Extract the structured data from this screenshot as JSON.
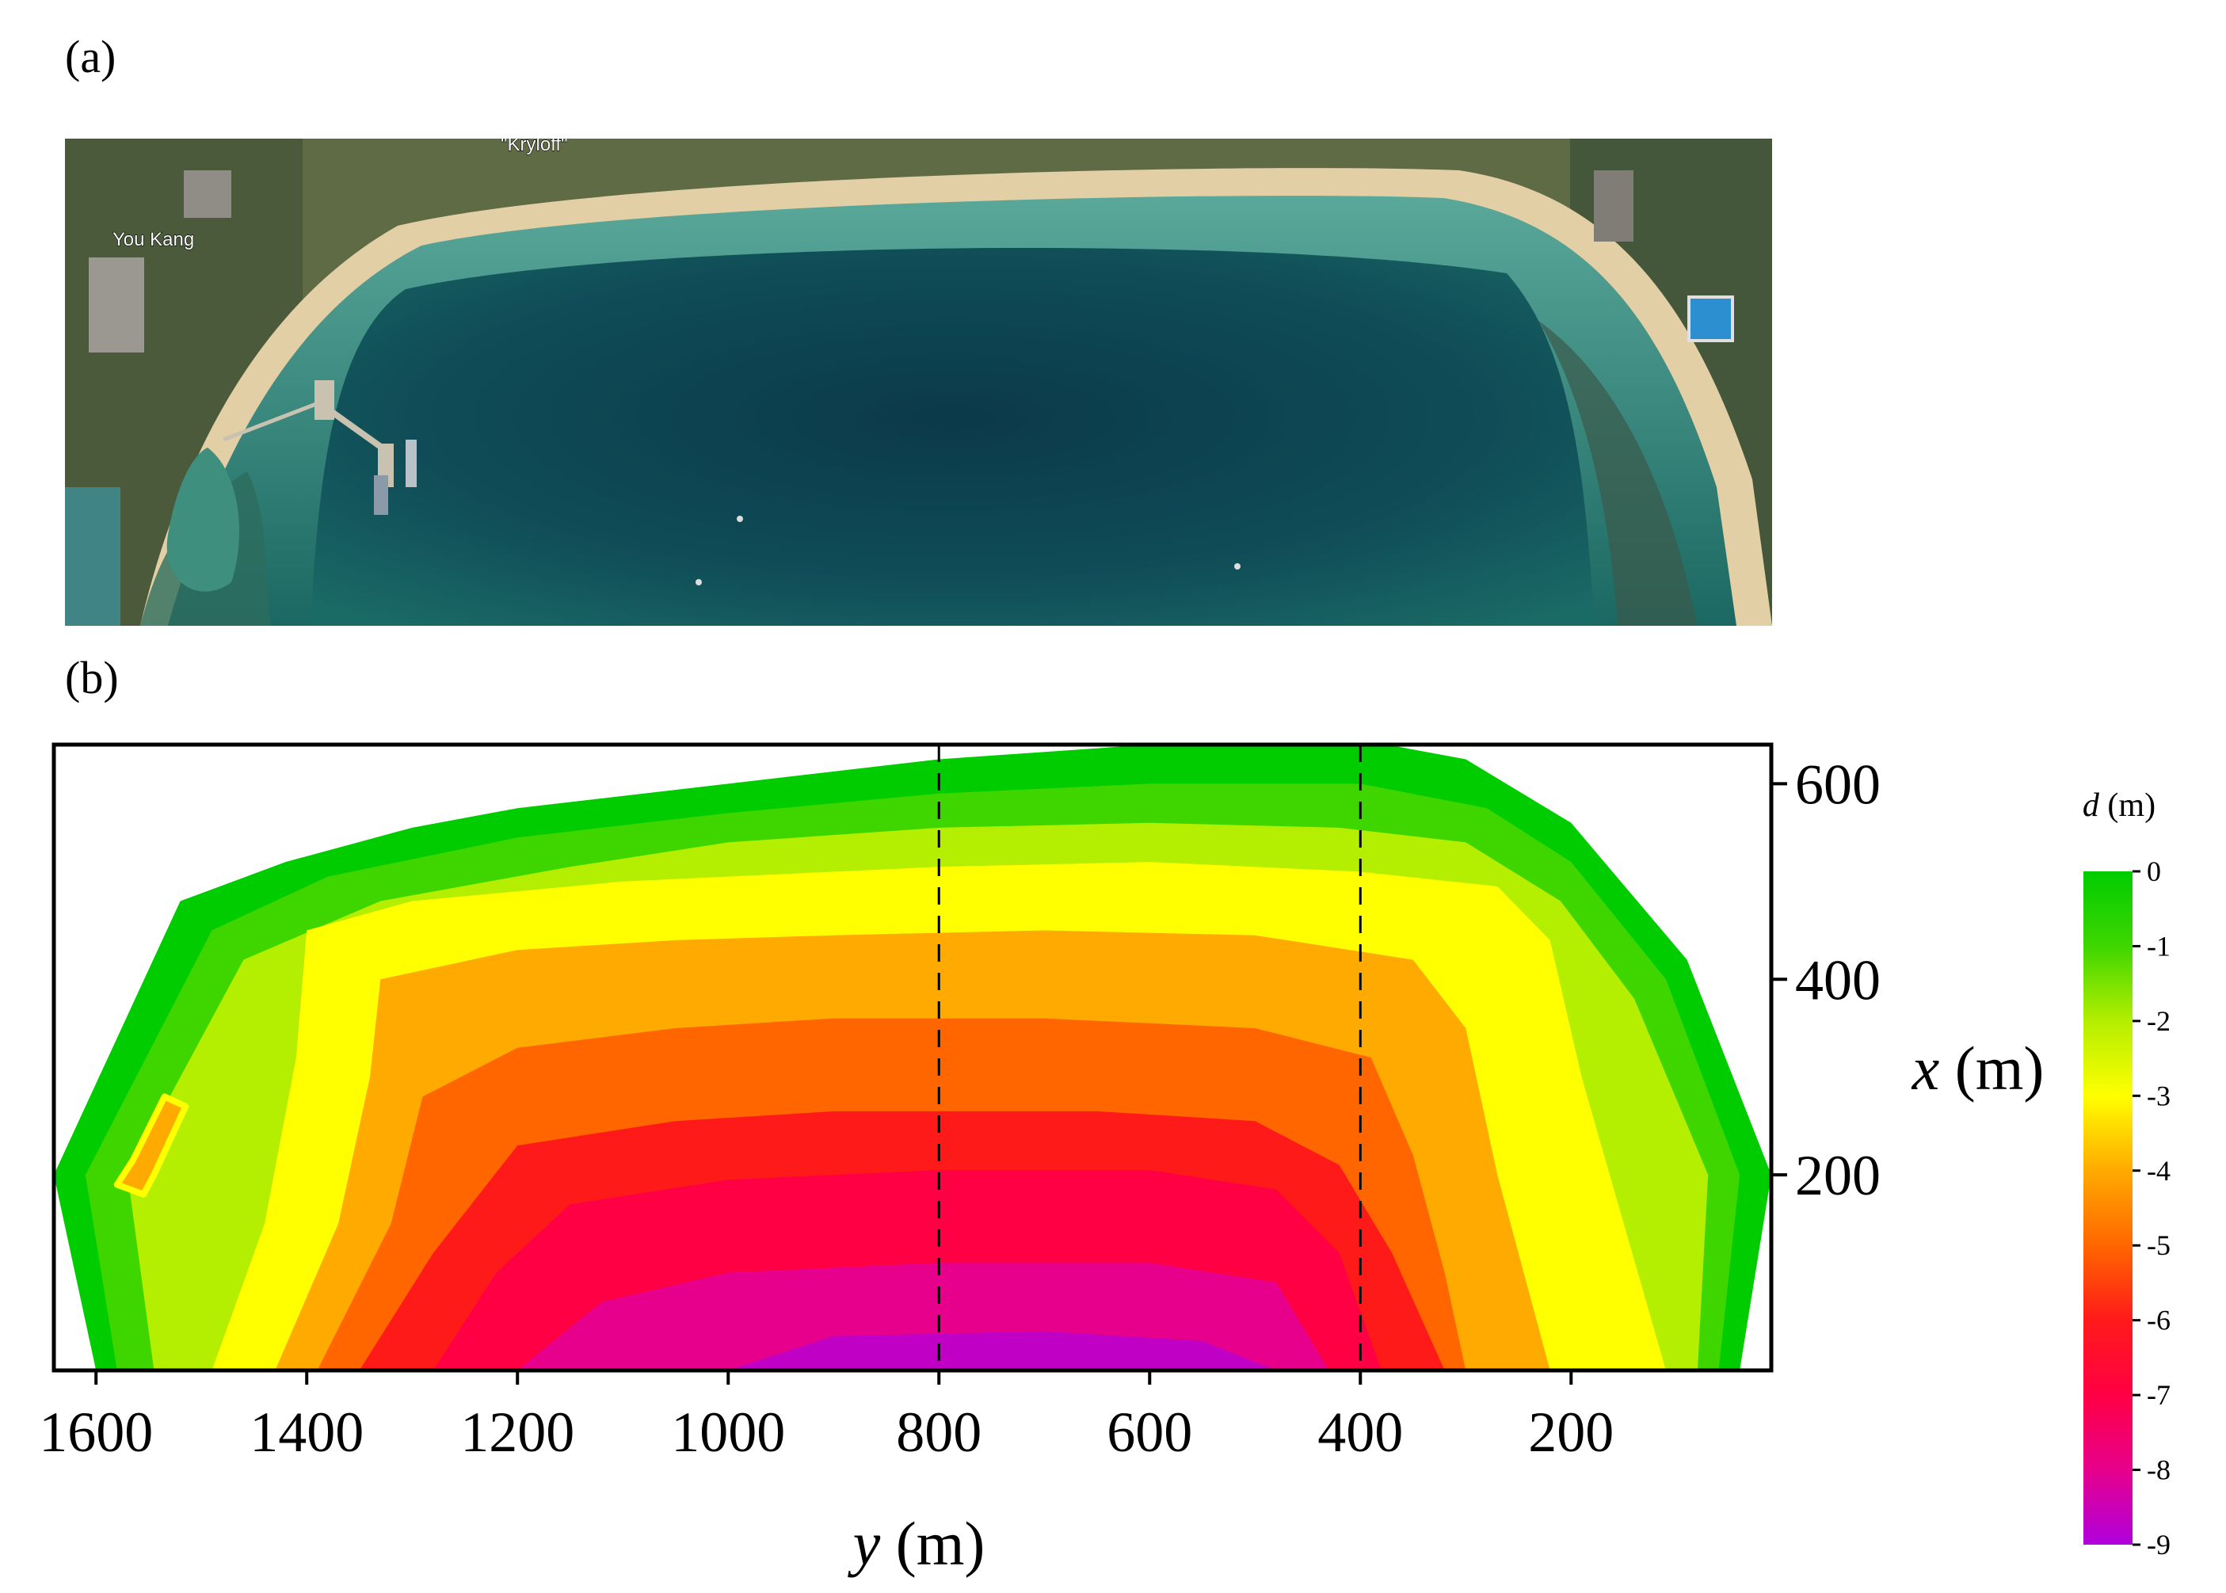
{
  "panels": {
    "a": {
      "label": "(a)",
      "place_labels": [
        "\"Kryloff\"",
        "You Kang"
      ]
    },
    "b": {
      "label": "(b)"
    }
  },
  "chart_data": {
    "type": "heatmap",
    "title": "",
    "xlabel_var": "y",
    "xlabel_unit": " (m)",
    "ylabel_var": "x",
    "ylabel_unit": " (m)",
    "x_axis": {
      "ticks": [
        1600,
        1400,
        1200,
        1000,
        800,
        600,
        400,
        200
      ],
      "range": [
        1640,
        10
      ],
      "direction": "decreasing"
    },
    "y_axis": {
      "ticks": [
        600,
        400,
        200
      ],
      "range": [
        0,
        640
      ],
      "position": "right"
    },
    "reference_lines_y": [
      800,
      400
    ],
    "colorbar": {
      "label_var": "d",
      "label_unit": " (m)",
      "ticks": [
        0,
        -1,
        -2,
        -3,
        -4,
        -5,
        -6,
        -7,
        -8,
        -9
      ],
      "range": [
        -9,
        0
      ],
      "colors": [
        {
          "value": 0,
          "color": "#00cc00"
        },
        {
          "value": -1,
          "color": "#3fd600"
        },
        {
          "value": -2,
          "color": "#b4ee00"
        },
        {
          "value": -3,
          "color": "#ffff00"
        },
        {
          "value": -4,
          "color": "#ffaa00"
        },
        {
          "value": -5,
          "color": "#ff6600"
        },
        {
          "value": -6,
          "color": "#ff1a1a"
        },
        {
          "value": -7,
          "color": "#ff0044"
        },
        {
          "value": -8,
          "color": "#e6008c"
        },
        {
          "value": -9,
          "color": "#b000dd"
        }
      ]
    },
    "domain_outline": [
      [
        1600,
        0
      ],
      [
        1640,
        200
      ],
      [
        1520,
        480
      ],
      [
        1420,
        520
      ],
      [
        1300,
        555
      ],
      [
        1200,
        575
      ],
      [
        1000,
        600
      ],
      [
        800,
        625
      ],
      [
        600,
        640
      ],
      [
        400,
        645
      ],
      [
        300,
        625
      ],
      [
        200,
        560
      ],
      [
        90,
        420
      ],
      [
        10,
        200
      ],
      [
        40,
        0
      ]
    ],
    "depth_zones": [
      {
        "depth": -1,
        "outline": [
          [
            1580,
            0
          ],
          [
            1610,
            200
          ],
          [
            1490,
            450
          ],
          [
            1380,
            505
          ],
          [
            1200,
            545
          ],
          [
            1000,
            570
          ],
          [
            800,
            590
          ],
          [
            600,
            600
          ],
          [
            400,
            600
          ],
          [
            280,
            575
          ],
          [
            200,
            520
          ],
          [
            110,
            400
          ],
          [
            40,
            200
          ],
          [
            60,
            0
          ]
        ]
      },
      {
        "depth": -2,
        "outline": [
          [
            1545,
            0
          ],
          [
            1570,
            200
          ],
          [
            1460,
            420
          ],
          [
            1330,
            480
          ],
          [
            1150,
            515
          ],
          [
            1000,
            540
          ],
          [
            800,
            555
          ],
          [
            600,
            560
          ],
          [
            420,
            555
          ],
          [
            300,
            540
          ],
          [
            210,
            480
          ],
          [
            140,
            380
          ],
          [
            70,
            200
          ],
          [
            80,
            0
          ]
        ]
      },
      {
        "depth": -3,
        "outline": [
          [
            1490,
            0
          ],
          [
            1440,
            150
          ],
          [
            1410,
            320
          ],
          [
            1400,
            450
          ],
          [
            1300,
            480
          ],
          [
            1100,
            500
          ],
          [
            800,
            515
          ],
          [
            600,
            520
          ],
          [
            400,
            510
          ],
          [
            270,
            495
          ],
          [
            220,
            440
          ],
          [
            190,
            300
          ],
          [
            150,
            150
          ],
          [
            110,
            0
          ]
        ]
      },
      {
        "depth": -4,
        "outline": [
          [
            1430,
            0
          ],
          [
            1370,
            150
          ],
          [
            1340,
            300
          ],
          [
            1330,
            400
          ],
          [
            1200,
            430
          ],
          [
            1050,
            440
          ],
          [
            900,
            445
          ],
          [
            700,
            450
          ],
          [
            500,
            445
          ],
          [
            350,
            420
          ],
          [
            300,
            350
          ],
          [
            270,
            200
          ],
          [
            220,
            0
          ]
        ]
      },
      {
        "depth": -5,
        "outline": [
          [
            1390,
            0
          ],
          [
            1320,
            150
          ],
          [
            1290,
            280
          ],
          [
            1200,
            330
          ],
          [
            1050,
            350
          ],
          [
            900,
            360
          ],
          [
            700,
            360
          ],
          [
            500,
            350
          ],
          [
            390,
            320
          ],
          [
            350,
            220
          ],
          [
            320,
            100
          ],
          [
            300,
            0
          ]
        ]
      },
      {
        "depth": -6,
        "outline": [
          [
            1350,
            0
          ],
          [
            1280,
            120
          ],
          [
            1200,
            230
          ],
          [
            1050,
            255
          ],
          [
            900,
            265
          ],
          [
            650,
            265
          ],
          [
            500,
            255
          ],
          [
            420,
            210
          ],
          [
            370,
            120
          ],
          [
            320,
            0
          ]
        ]
      },
      {
        "depth": -7,
        "outline": [
          [
            1280,
            0
          ],
          [
            1220,
            100
          ],
          [
            1150,
            170
          ],
          [
            1000,
            195
          ],
          [
            800,
            205
          ],
          [
            600,
            205
          ],
          [
            480,
            185
          ],
          [
            420,
            120
          ],
          [
            380,
            0
          ]
        ]
      },
      {
        "depth": -8,
        "outline": [
          [
            1200,
            0
          ],
          [
            1120,
            70
          ],
          [
            1000,
            100
          ],
          [
            800,
            110
          ],
          [
            600,
            110
          ],
          [
            480,
            90
          ],
          [
            430,
            0
          ]
        ]
      },
      {
        "depth": -8.7,
        "outline": [
          [
            1000,
            0
          ],
          [
            900,
            35
          ],
          [
            700,
            40
          ],
          [
            550,
            30
          ],
          [
            480,
            0
          ]
        ]
      }
    ],
    "inner_pond": {
      "depth": -4,
      "outline": [
        [
          1555,
          180
        ],
        [
          1580,
          190
        ],
        [
          1565,
          215
        ],
        [
          1535,
          280
        ],
        [
          1515,
          270
        ],
        [
          1545,
          200
        ]
      ]
    }
  }
}
